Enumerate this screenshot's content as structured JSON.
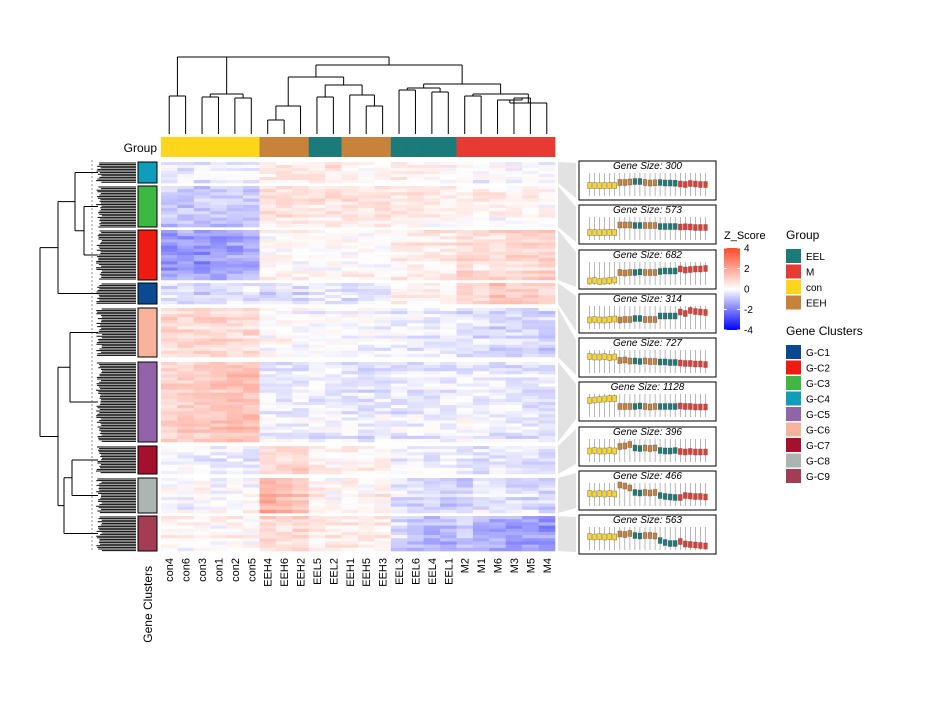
{
  "chart_data": {
    "type": "heatmap",
    "title": "",
    "samples": [
      "con4",
      "con6",
      "con3",
      "con1",
      "con2",
      "con5",
      "EEH4",
      "EEH6",
      "EEH2",
      "EEL5",
      "EEL2",
      "EEH1",
      "EEH5",
      "EEH3",
      "EEL3",
      "EEL6",
      "EEL4",
      "EEL1",
      "M2",
      "M1",
      "M6",
      "M3",
      "M5",
      "M4"
    ],
    "sample_groups": [
      "con",
      "con",
      "con",
      "con",
      "con",
      "con",
      "EEH",
      "EEH",
      "EEH",
      "EEL",
      "EEL",
      "EEH",
      "EEH",
      "EEH",
      "EEL",
      "EEL",
      "EEL",
      "EEL",
      "M",
      "M",
      "M",
      "M",
      "M",
      "M"
    ],
    "group_label": "Group",
    "cluster_label": "Gene Clusters",
    "clusters": [
      {
        "name": "G-C4",
        "size": 300,
        "size_label": "Gene Size: 300",
        "pattern": [
          -0.3,
          -0.3,
          -0.35,
          -0.3,
          -0.3,
          -0.3,
          0.3,
          0.3,
          0.4,
          0.5,
          0.5,
          0.3,
          0.2,
          0.25,
          0.3,
          0.2,
          0.2,
          0.15,
          0.0,
          -0.1,
          0.1,
          0.0,
          -0.1,
          -0.1
        ]
      },
      {
        "name": "G-C3",
        "size": 573,
        "size_label": "Gene Size: 573",
        "pattern": [
          -0.9,
          -0.9,
          -0.95,
          -0.9,
          -0.85,
          -0.9,
          0.6,
          0.6,
          0.6,
          0.5,
          0.5,
          0.5,
          0.5,
          0.5,
          0.3,
          0.3,
          0.3,
          0.3,
          0.2,
          0.25,
          0.2,
          0.1,
          0.1,
          0.1
        ]
      },
      {
        "name": "G-C2",
        "size": 682,
        "size_label": "Gene Size: 682",
        "pattern": [
          -1.6,
          -1.5,
          -1.7,
          -1.6,
          -1.5,
          -1.4,
          0.1,
          0.0,
          0.1,
          0.1,
          0.2,
          0.1,
          0.1,
          0.1,
          0.3,
          0.4,
          0.4,
          0.4,
          0.8,
          0.6,
          0.7,
          0.8,
          0.8,
          0.9
        ]
      },
      {
        "name": "G-C1",
        "size": 314,
        "size_label": "Gene Size: 314",
        "pattern": [
          -0.6,
          -0.5,
          -0.6,
          -0.6,
          -0.5,
          -0.4,
          -0.6,
          -0.5,
          -0.5,
          -0.3,
          -0.3,
          -0.5,
          -0.5,
          -0.5,
          0.2,
          0.2,
          0.2,
          0.2,
          1.0,
          0.7,
          1.3,
          1.1,
          1.0,
          0.9
        ]
      },
      {
        "name": "G-C6",
        "size": 727,
        "size_label": "Gene Size: 727",
        "pattern": [
          0.9,
          0.8,
          0.8,
          0.9,
          0.7,
          0.8,
          0.1,
          0.2,
          0.0,
          0.0,
          -0.1,
          0.0,
          -0.1,
          -0.1,
          -0.2,
          -0.2,
          -0.3,
          -0.3,
          -0.4,
          -0.5,
          -0.5,
          -0.6,
          -0.6,
          -0.7
        ]
      },
      {
        "name": "G-C5",
        "size": 1128,
        "size_label": "Gene Size: 1128",
        "pattern": [
          0.9,
          1.0,
          1.1,
          1.2,
          1.3,
          1.3,
          -0.3,
          -0.3,
          -0.3,
          -0.3,
          -0.2,
          -0.3,
          -0.4,
          -0.3,
          -0.3,
          -0.3,
          -0.3,
          -0.3,
          -0.2,
          -0.3,
          -0.3,
          -0.4,
          -0.4,
          -0.4
        ]
      },
      {
        "name": "G-C7",
        "size": 396,
        "size_label": "Gene Size: 396",
        "pattern": [
          -0.2,
          -0.1,
          -0.2,
          -0.2,
          -0.1,
          -0.2,
          0.7,
          0.8,
          1.1,
          0.4,
          0.3,
          0.4,
          0.3,
          0.4,
          -0.1,
          -0.2,
          -0.2,
          -0.1,
          -0.3,
          -0.4,
          -0.3,
          -0.4,
          -0.4,
          -0.4
        ]
      },
      {
        "name": "G-C8",
        "size": 466,
        "size_label": "Gene Size: 466",
        "pattern": [
          0.1,
          0.0,
          0.1,
          0.0,
          0.1,
          0.0,
          1.8,
          1.6,
          1.2,
          0.3,
          0.2,
          0.3,
          0.2,
          0.3,
          -0.3,
          -0.5,
          -0.6,
          -0.7,
          -0.7,
          -0.3,
          -0.4,
          -0.5,
          -0.5,
          -0.6
        ]
      },
      {
        "name": "G-C9",
        "size": 563,
        "size_label": "Gene Size: 563",
        "pattern": [
          0.3,
          0.2,
          0.3,
          0.2,
          0.3,
          0.2,
          0.8,
          0.7,
          0.9,
          0.5,
          0.4,
          0.5,
          0.5,
          0.4,
          -0.5,
          -0.9,
          -1.1,
          -1.1,
          -0.7,
          -1.2,
          -1.3,
          -1.4,
          -1.5,
          -1.6
        ]
      }
    ],
    "colorbar": {
      "title": "Z_Score",
      "min": -4,
      "max": 4,
      "ticks": [
        4,
        2,
        0,
        -2,
        -4
      ],
      "low_color": "#0000ff",
      "mid_color": "#ffffff",
      "high_color": "#ff4a2a"
    },
    "legends": {
      "group": {
        "title": "Group",
        "items": [
          {
            "label": "EEL",
            "color": "#1b7b7b"
          },
          {
            "label": "M",
            "color": "#e63b33"
          },
          {
            "label": "con",
            "color": "#fdd51a"
          },
          {
            "label": "EEH",
            "color": "#c98239"
          }
        ]
      },
      "clusters": {
        "title": "Gene Clusters",
        "items": [
          {
            "label": "G-C1",
            "color": "#0a4a93"
          },
          {
            "label": "G-C2",
            "color": "#ee1b12"
          },
          {
            "label": "G-C3",
            "color": "#3db842"
          },
          {
            "label": "G-C4",
            "color": "#0f9dbb"
          },
          {
            "label": "G-C5",
            "color": "#9363aa"
          },
          {
            "label": "G-C6",
            "color": "#f9b39c"
          },
          {
            "label": "G-C7",
            "color": "#a5102d"
          },
          {
            "label": "G-C8",
            "color": "#adb5b3"
          },
          {
            "label": "G-C9",
            "color": "#a43c53"
          }
        ]
      }
    }
  }
}
